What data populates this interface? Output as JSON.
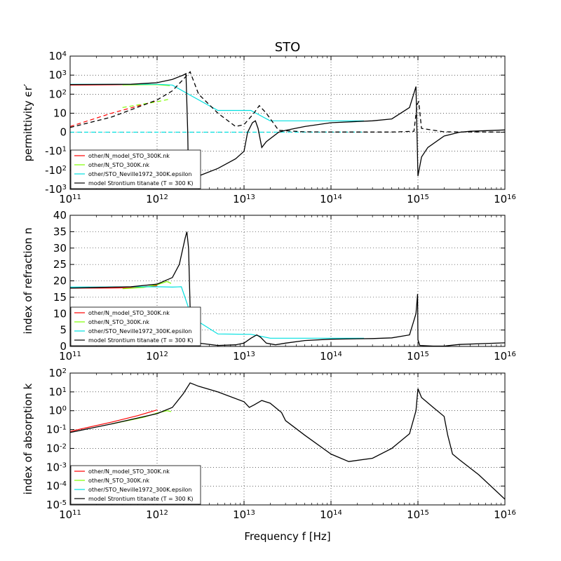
{
  "figure_title": "STO",
  "xlabel": "Frequency $f$ [Hz]",
  "chart_data": [
    {
      "type": "line",
      "title": "STO",
      "xlabel": "",
      "ylabel": "permittivity ϵr′",
      "xscale": "log",
      "xlim": [
        100000000000.0,
        1e+16
      ],
      "yscale": "symlog",
      "ylim": [
        -1000,
        10000
      ],
      "yticks": [
        -1000,
        -100,
        -10,
        0,
        10,
        100,
        1000,
        10000
      ],
      "ytick_labels": [
        "-10³",
        "-10²",
        "-10¹",
        "0",
        "10",
        "10²",
        "10³",
        "10⁴"
      ],
      "grid": true,
      "legend_position": "bottom-left",
      "series": [
        {
          "name": "other/N_model_STO_300K.nk",
          "color": "#ff0000",
          "style": "solid",
          "points": [
            [
              100000000000.0,
              300
            ],
            [
              300000000000.0,
              310
            ],
            [
              1000000000000.0,
              330
            ]
          ]
        },
        {
          "name": "",
          "color": "#ff0000",
          "style": "dashed",
          "points": [
            [
              100000000000.0,
              3
            ],
            [
              300000000000.0,
              10
            ],
            [
              1000000000000.0,
              45
            ]
          ]
        },
        {
          "name": "other/N_STO_300K.nk",
          "color": "#7fff00",
          "style": "solid",
          "points": [
            [
              400000000000.0,
              305
            ],
            [
              1000000000000.0,
              320
            ],
            [
              1400000000000.0,
              280
            ]
          ]
        },
        {
          "name": "",
          "color": "#7fff00",
          "style": "dashed",
          "points": [
            [
              400000000000.0,
              20
            ],
            [
              1000000000000.0,
              40
            ],
            [
              1400000000000.0,
              55
            ]
          ]
        },
        {
          "name": "other/STO_Neville1972_300K.epsilon",
          "color": "#00e0e0",
          "style": "solid",
          "points": [
            [
              100000000000.0,
              330
            ],
            [
              1000000000000.0,
              330
            ],
            [
              1500000000000.0,
              300
            ],
            [
              2500000000000.0,
              80
            ],
            [
              5000000000000.0,
              14
            ],
            [
              10000000000000.0,
              14
            ],
            [
              12000000000000.0,
              14
            ],
            [
              20000000000000.0,
              6
            ],
            [
              100000000000000.0,
              6
            ],
            [
              240000000000000.0,
              6
            ]
          ]
        },
        {
          "name": "",
          "color": "#00e0e0",
          "style": "dashed",
          "points": [
            [
              100000000000.0,
              0.02
            ],
            [
              1000000000000.0,
              0.03
            ],
            [
              2000000000000.0,
              0.03
            ],
            [
              10000000000000.0,
              0.03
            ],
            [
              100000000000000.0,
              0.05
            ],
            [
              240000000000000.0,
              0.05
            ]
          ]
        },
        {
          "name": "model Strontium titanate (T = 300 K)",
          "color": "#000000",
          "style": "solid",
          "points": [
            [
              100000000000.0,
              320
            ],
            [
              500000000000.0,
              330
            ],
            [
              1000000000000.0,
              400
            ],
            [
              1500000000000.0,
              600
            ],
            [
              2000000000000.0,
              1000
            ],
            [
              2150000000000.0,
              1200
            ],
            [
              2250000000000.0,
              0
            ],
            [
              2300000000000.0,
              -500
            ],
            [
              3000000000000.0,
              -200
            ],
            [
              5000000000000.0,
              -80
            ],
            [
              8000000000000.0,
              -25
            ],
            [
              10000000000000.0,
              -10
            ],
            [
              11000000000000.0,
              0
            ],
            [
              12500000000000.0,
              5
            ],
            [
              13500000000000.0,
              6
            ],
            [
              14500000000000.0,
              2
            ],
            [
              16000000000000.0,
              -8
            ],
            [
              18000000000000.0,
              -5
            ],
            [
              25000000000000.0,
              0
            ],
            [
              30000000000000.0,
              1
            ],
            [
              50000000000000.0,
              3
            ],
            [
              100000000000000.0,
              5
            ],
            [
              300000000000000.0,
              6
            ],
            [
              500000000000000.0,
              7
            ],
            [
              800000000000000.0,
              20
            ],
            [
              950000000000000.0,
              250
            ],
            [
              1000000000000000.0,
              -200
            ],
            [
              1100000000000000.0,
              -20
            ],
            [
              1300000000000000.0,
              -8
            ],
            [
              2000000000000000.0,
              -2
            ],
            [
              3000000000000000.0,
              0
            ],
            [
              4000000000000000.0,
              0.5
            ],
            [
              1e+16,
              1.2
            ]
          ]
        },
        {
          "name": "",
          "color": "#000000",
          "style": "dashed",
          "points": [
            [
              100000000000.0,
              2.5
            ],
            [
              300000000000.0,
              8
            ],
            [
              1000000000000.0,
              50
            ],
            [
              1500000000000.0,
              150
            ],
            [
              2000000000000.0,
              600
            ],
            [
              2400000000000.0,
              1500
            ],
            [
              3000000000000.0,
              100
            ],
            [
              5000000000000.0,
              10
            ],
            [
              8000000000000.0,
              3
            ],
            [
              10000000000000.0,
              4
            ],
            [
              13000000000000.0,
              10
            ],
            [
              15000000000000.0,
              25
            ],
            [
              18000000000000.0,
              10
            ],
            [
              25000000000000.0,
              1
            ],
            [
              50000000000000.0,
              0.2
            ],
            [
              100000000000000.0,
              0.1
            ],
            [
              500000000000000.0,
              0.1
            ],
            [
              900000000000000.0,
              0.5
            ],
            [
              980000000000000.0,
              30
            ],
            [
              1020000000000000.0,
              40
            ],
            [
              1100000000000000.0,
              2
            ],
            [
              2000000000000000.0,
              0.2
            ],
            [
              1e+16,
              0.05
            ]
          ]
        }
      ]
    },
    {
      "type": "line",
      "title": "",
      "xlabel": "",
      "ylabel": "index of refraction n",
      "xscale": "log",
      "xlim": [
        100000000000.0,
        1e+16
      ],
      "yscale": "linear",
      "ylim": [
        0,
        40
      ],
      "yticks": [
        0,
        5,
        10,
        15,
        20,
        25,
        30,
        35,
        40
      ],
      "ytick_labels": [
        "0",
        "5",
        "10",
        "15",
        "20",
        "25",
        "30",
        "35",
        "40"
      ],
      "grid": true,
      "legend_position": "bottom-left",
      "series": [
        {
          "name": "other/N_model_STO_300K.nk",
          "color": "#ff0000",
          "style": "solid",
          "points": [
            [
              100000000000.0,
              17.8
            ],
            [
              300000000000.0,
              17.8
            ],
            [
              600000000000.0,
              18.0
            ],
            [
              1000000000000.0,
              18.5
            ]
          ]
        },
        {
          "name": "other/N_STO_300K.nk",
          "color": "#7fff00",
          "style": "solid",
          "points": [
            [
              400000000000.0,
              17.6
            ],
            [
              700000000000.0,
              18.0
            ],
            [
              1000000000000.0,
              18.8
            ],
            [
              1300000000000.0,
              19.8
            ],
            [
              1450000000000.0,
              19.2
            ]
          ]
        },
        {
          "name": "other/STO_Neville1972_300K.epsilon",
          "color": "#00e0e0",
          "style": "solid",
          "points": [
            [
              100000000000.0,
              18.1
            ],
            [
              1000000000000.0,
              18.2
            ],
            [
              1500000000000.0,
              18.1
            ],
            [
              1900000000000.0,
              18.2
            ],
            [
              2500000000000.0,
              9
            ],
            [
              3000000000000.0,
              7.5
            ],
            [
              5000000000000.0,
              3.8
            ],
            [
              10000000000000.0,
              3.7
            ],
            [
              12000000000000.0,
              3.7
            ],
            [
              20000000000000.0,
              2.5
            ],
            [
              100000000000000.0,
              2.5
            ],
            [
              240000000000000.0,
              2.5
            ]
          ]
        },
        {
          "name": "model Strontium titanate (T = 300 K)",
          "color": "#000000",
          "style": "solid",
          "points": [
            [
              100000000000.0,
              17.8
            ],
            [
              500000000000.0,
              18.2
            ],
            [
              1000000000000.0,
              19
            ],
            [
              1500000000000.0,
              21
            ],
            [
              1800000000000.0,
              25
            ],
            [
              2100000000000.0,
              33
            ],
            [
              2200000000000.0,
              35
            ],
            [
              2300000000000.0,
              30
            ],
            [
              2400000000000.0,
              12
            ],
            [
              2600000000000.0,
              3
            ],
            [
              3000000000000.0,
              1
            ],
            [
              5000000000000.0,
              0.3
            ],
            [
              8000000000000.0,
              0.5
            ],
            [
              10000000000000.0,
              1
            ],
            [
              12000000000000.0,
              2.5
            ],
            [
              14000000000000.0,
              3.5
            ],
            [
              15500000000000.0,
              2.8
            ],
            [
              18000000000000.0,
              1
            ],
            [
              23000000000000.0,
              0.5
            ],
            [
              30000000000000.0,
              1
            ],
            [
              50000000000000.0,
              1.8
            ],
            [
              100000000000000.0,
              2.2
            ],
            [
              300000000000000.0,
              2.4
            ],
            [
              500000000000000.0,
              2.6
            ],
            [
              800000000000000.0,
              3.5
            ],
            [
              950000000000000.0,
              10
            ],
            [
              990000000000000.0,
              16
            ],
            [
              1000000000000000.0,
              2
            ],
            [
              1050000000000000.0,
              0.3
            ],
            [
              1500000000000000.0,
              0.1
            ],
            [
              2000000000000000.0,
              0.1
            ],
            [
              3000000000000000.0,
              0.6
            ],
            [
              1e+16,
              1.1
            ]
          ]
        }
      ]
    },
    {
      "type": "line",
      "title": "",
      "xlabel": "Frequency f [Hz]",
      "ylabel": "index of absorption k",
      "xscale": "log",
      "xlim": [
        100000000000.0,
        1e+16
      ],
      "yscale": "log",
      "ylim": [
        1e-05,
        100
      ],
      "yticks": [
        1e-05,
        0.0001,
        0.001,
        0.01,
        0.1,
        1,
        10,
        100
      ],
      "ytick_labels": [
        "10⁻⁵",
        "10⁻⁴",
        "10⁻³",
        "10⁻²",
        "10⁻¹",
        "10⁰",
        "10¹",
        "10²"
      ],
      "grid": true,
      "legend_position": "bottom-left",
      "series": [
        {
          "name": "other/N_model_STO_300K.nk",
          "color": "#ff0000",
          "style": "solid",
          "points": [
            [
              100000000000.0,
              0.08
            ],
            [
              300000000000.0,
              0.25
            ],
            [
              600000000000.0,
              0.55
            ],
            [
              1000000000000.0,
              1.1
            ]
          ]
        },
        {
          "name": "other/N_STO_300K.nk",
          "color": "#7fff00",
          "style": "solid",
          "points": [
            [
              300000000000.0,
              0.2
            ],
            [
              700000000000.0,
              0.45
            ],
            [
              1000000000000.0,
              0.75
            ],
            [
              1300000000000.0,
              1.0
            ],
            [
              1450000000000.0,
              0.9
            ]
          ]
        },
        {
          "name": "other/STO_Neville1972_300K.epsilon",
          "color": "#00e0e0",
          "style": "solid",
          "points": []
        },
        {
          "name": "model Strontium titanate (T = 300 K)",
          "color": "#000000",
          "style": "solid",
          "points": [
            [
              100000000000.0,
              0.07
            ],
            [
              300000000000.0,
              0.2
            ],
            [
              1000000000000.0,
              0.7
            ],
            [
              1500000000000.0,
              1.5
            ],
            [
              2000000000000.0,
              8
            ],
            [
              2400000000000.0,
              30
            ],
            [
              3000000000000.0,
              20
            ],
            [
              5000000000000.0,
              10
            ],
            [
              10000000000000.0,
              3
            ],
            [
              11500000000000.0,
              1.5
            ],
            [
              13000000000000.0,
              2
            ],
            [
              16000000000000.0,
              3.5
            ],
            [
              20000000000000.0,
              2.5
            ],
            [
              27000000000000.0,
              0.8
            ],
            [
              30000000000000.0,
              0.3
            ],
            [
              50000000000000.0,
              0.05
            ],
            [
              100000000000000.0,
              0.005
            ],
            [
              160000000000000.0,
              0.002
            ],
            [
              300000000000000.0,
              0.003
            ],
            [
              500000000000000.0,
              0.01
            ],
            [
              800000000000000.0,
              0.06
            ],
            [
              950000000000000.0,
              1
            ],
            [
              1000000000000000.0,
              15
            ],
            [
              1100000000000000.0,
              5
            ],
            [
              1500000000000000.0,
              1.5
            ],
            [
              2000000000000000.0,
              0.5
            ],
            [
              2200000000000000.0,
              0.05
            ],
            [
              2500000000000000.0,
              0.005
            ],
            [
              3000000000000000.0,
              0.0025
            ],
            [
              5000000000000000.0,
              0.0004
            ],
            [
              1e+16,
              2e-05
            ]
          ]
        }
      ]
    }
  ]
}
